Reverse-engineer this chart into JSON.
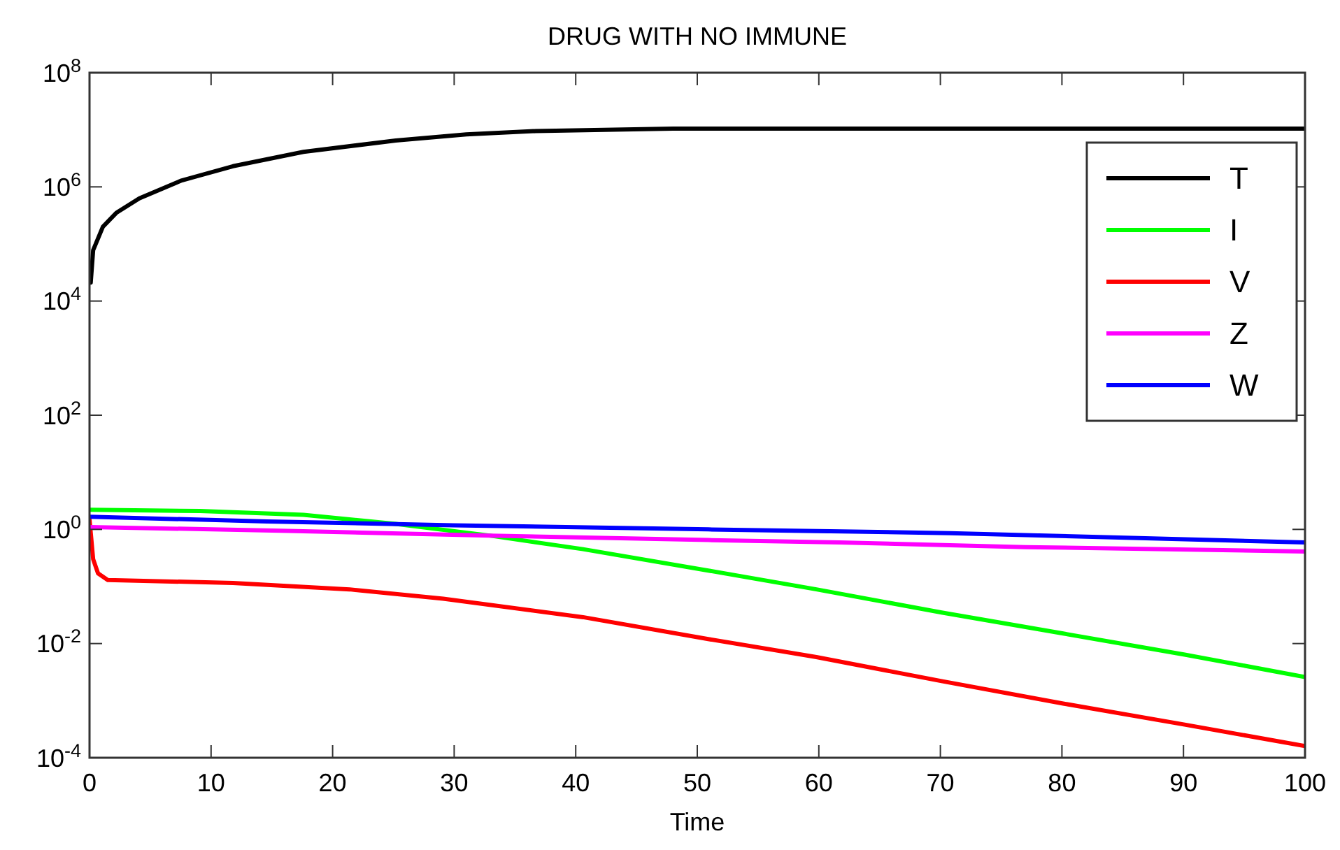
{
  "chart_data": {
    "type": "line",
    "title": "DRUG WITH NO IMMUNE",
    "xlabel": "Time",
    "log": "y",
    "grid": false,
    "legend": "right",
    "marker": "none",
    "line_style": "solid",
    "xlim": [
      0,
      100
    ],
    "xticks": [
      0,
      10,
      20,
      30,
      40,
      50,
      60,
      70,
      80,
      90,
      100
    ],
    "ylim": [
      0.0001,
      100000000
    ],
    "yticks": [
      {
        "value": 0.0001,
        "label": "10$^{-4}$"
      },
      {
        "value": 0.01,
        "label": "10$^{-2}$"
      },
      {
        "value": 1,
        "label": "10$^{0}$"
      },
      {
        "value": 100,
        "label": "10$^{2}$"
      },
      {
        "value": 10000,
        "label": "10$^{4}$"
      },
      {
        "value": 1000000,
        "label": "10$^{6}$"
      },
      {
        "value": 100000000,
        "label": "10$^{8}$"
      }
    ],
    "series": [
      {
        "name": "T",
        "color": "#000000",
        "x": [
          0.1,
          0.3,
          1.1,
          2.2,
          4.1,
          7.6,
          11.8,
          17.6,
          25.2,
          31,
          36.7,
          48,
          60,
          80,
          100
        ],
        "values": [
          21000,
          78000,
          200000,
          350000,
          630000,
          1300000,
          2300000,
          4100000,
          6500000,
          8300000,
          9500000,
          10500000,
          10500000,
          10500000,
          10500000
        ]
      },
      {
        "name": "I",
        "color": "#00ff00",
        "x": [
          0,
          9.1,
          17.6,
          25.2,
          32.9,
          40.6,
          50.9,
          59.8,
          70.1,
          80.1,
          90.1,
          100
        ],
        "values": [
          2.2,
          2.1,
          1.8,
          1.25,
          0.78,
          0.45,
          0.19,
          0.089,
          0.035,
          0.015,
          0.0064,
          0.0026
        ]
      },
      {
        "name": "V",
        "color": "#ff0000",
        "x": [
          0,
          0.3,
          0.7,
          1.5,
          11.8,
          21.4,
          29.1,
          40.6,
          50.9,
          59.8,
          70.1,
          80.1,
          90.1,
          100
        ],
        "values": [
          1.5,
          0.3,
          0.17,
          0.13,
          0.115,
          0.089,
          0.061,
          0.029,
          0.012,
          0.0058,
          0.0022,
          0.00089,
          0.00038,
          0.00016
        ]
      },
      {
        "name": "Z",
        "color": "#ff00ff",
        "x": [
          0,
          15.7,
          32.9,
          50.9,
          61.7,
          77,
          100
        ],
        "values": [
          1.1,
          0.95,
          0.78,
          0.65,
          0.59,
          0.49,
          0.41
        ]
      },
      {
        "name": "W",
        "color": "#0000ff",
        "x": [
          0,
          14.6,
          29.9,
          50.9,
          70.8,
          100
        ],
        "values": [
          1.66,
          1.38,
          1.18,
          1.0,
          0.86,
          0.59
        ]
      }
    ]
  }
}
